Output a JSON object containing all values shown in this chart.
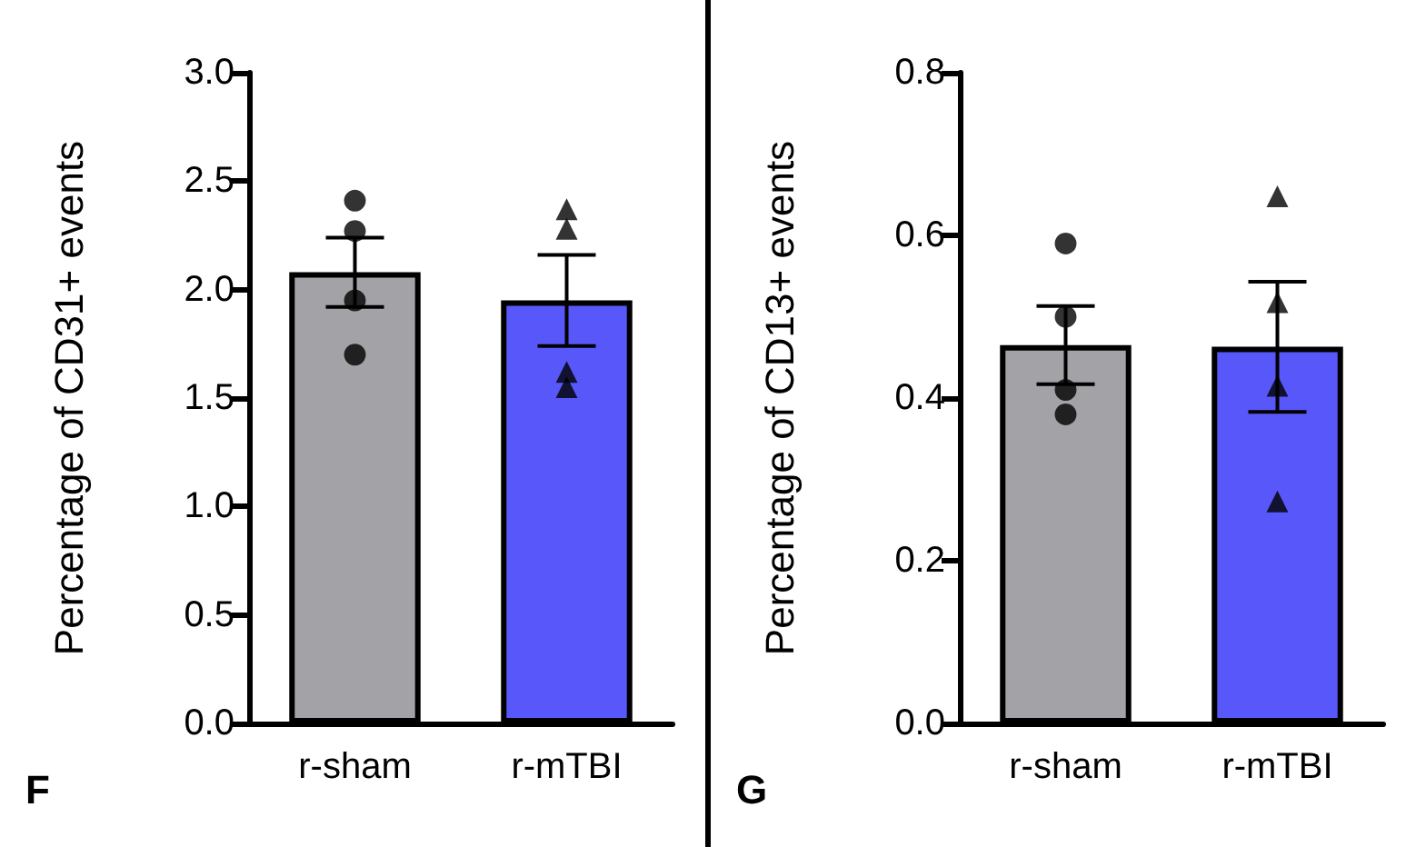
{
  "chart_data": [
    {
      "type": "bar",
      "ylabel": "Percentage of CD31+ events",
      "categories": [
        "r-sham",
        "r-mTBI"
      ],
      "annotations": [
        "F"
      ],
      "series": [
        {
          "values": [
            2.08,
            1.95
          ],
          "colors": [
            "#a3a2a7",
            "#5858fa"
          ],
          "errors": [
            0.16,
            0.21
          ]
        },
        {
          "type": "scatter",
          "color": "#000000",
          "marker": "circle",
          "x": [
            "r-sham",
            "r-sham",
            "r-sham",
            "r-sham"
          ],
          "values": [
            2.41,
            2.27,
            1.95,
            1.7
          ]
        },
        {
          "type": "scatter",
          "color": "#000000",
          "marker": "triangle",
          "x": [
            "r-mTBI",
            "r-mTBI",
            "r-mTBI",
            "r-mTBI"
          ],
          "values": [
            2.37,
            2.28,
            1.55,
            1.62
          ]
        }
      ],
      "ylim": [
        0,
        3
      ],
      "yticks": [
        {
          "value": 0,
          "label": "0.0"
        },
        {
          "value": 0.5,
          "label": "0.5"
        },
        {
          "value": 1,
          "label": "1.0"
        },
        {
          "value": 1.5,
          "label": "1.5"
        },
        {
          "value": 2,
          "label": "2.0"
        },
        {
          "value": 2.5,
          "label": "2.5"
        },
        {
          "value": 3,
          "label": "3.0"
        }
      ],
      "grid": false
    },
    {
      "type": "bar",
      "ylabel": "Percentage of CD13+ events",
      "categories": [
        "r-sham",
        "r-mTBI"
      ],
      "annotations": [
        "G"
      ],
      "series": [
        {
          "values": [
            0.465,
            0.463
          ],
          "colors": [
            "#a3a2a7",
            "#5858fa"
          ],
          "errors": [
            0.048,
            0.08
          ]
        },
        {
          "type": "scatter",
          "color": "#000000",
          "marker": "circle",
          "x": [
            "r-sham",
            "r-sham",
            "r-sham",
            "r-sham"
          ],
          "values": [
            0.59,
            0.5,
            0.41,
            0.38
          ]
        },
        {
          "type": "scatter",
          "color": "#000000",
          "marker": "triangle",
          "x": [
            "r-mTBI",
            "r-mTBI",
            "r-mTBI",
            "r-mTBI"
          ],
          "values": [
            0.648,
            0.518,
            0.415,
            0.273
          ]
        }
      ],
      "ylim": [
        0,
        0.8
      ],
      "yticks": [
        {
          "value": 0,
          "label": "0.0"
        },
        {
          "value": 0.2,
          "label": "0.2"
        },
        {
          "value": 0.4,
          "label": "0.4"
        },
        {
          "value": 0.6,
          "label": "0.6"
        },
        {
          "value": 0.8,
          "label": "0.8"
        }
      ],
      "grid": false
    }
  ]
}
